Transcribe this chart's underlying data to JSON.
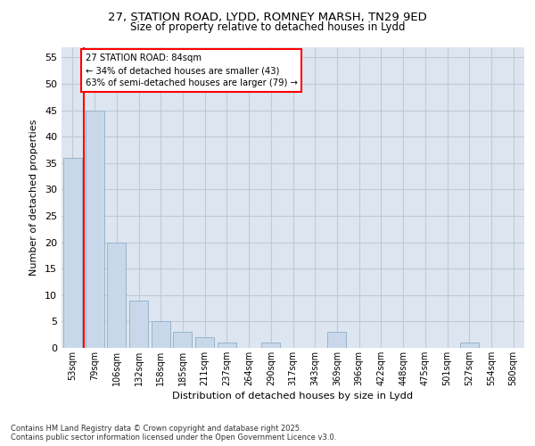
{
  "title_line1": "27, STATION ROAD, LYDD, ROMNEY MARSH, TN29 9ED",
  "title_line2": "Size of property relative to detached houses in Lydd",
  "xlabel": "Distribution of detached houses by size in Lydd",
  "ylabel": "Number of detached properties",
  "bar_color": "#c8d8ea",
  "bar_edge_color": "#98b4cc",
  "categories": [
    "53sqm",
    "79sqm",
    "106sqm",
    "132sqm",
    "158sqm",
    "185sqm",
    "211sqm",
    "237sqm",
    "264sqm",
    "290sqm",
    "317sqm",
    "343sqm",
    "369sqm",
    "396sqm",
    "422sqm",
    "448sqm",
    "475sqm",
    "501sqm",
    "527sqm",
    "554sqm",
    "580sqm"
  ],
  "values": [
    36,
    45,
    20,
    9,
    5,
    3,
    2,
    1,
    0,
    1,
    0,
    0,
    3,
    0,
    0,
    0,
    0,
    0,
    1,
    0,
    0
  ],
  "ylim_max": 57,
  "yticks": [
    0,
    5,
    10,
    15,
    20,
    25,
    30,
    35,
    40,
    45,
    50,
    55
  ],
  "red_line_x": 0.5,
  "annotation_title": "27 STATION ROAD: 84sqm",
  "annotation_line1": "← 34% of detached houses are smaller (43)",
  "annotation_line2": "63% of semi-detached houses are larger (79) →",
  "grid_color": "#c0cad6",
  "plot_bg_color": "#dde6f0",
  "footer_line1": "Contains HM Land Registry data © Crown copyright and database right 2025.",
  "footer_line2": "Contains public sector information licensed under the Open Government Licence v3.0."
}
